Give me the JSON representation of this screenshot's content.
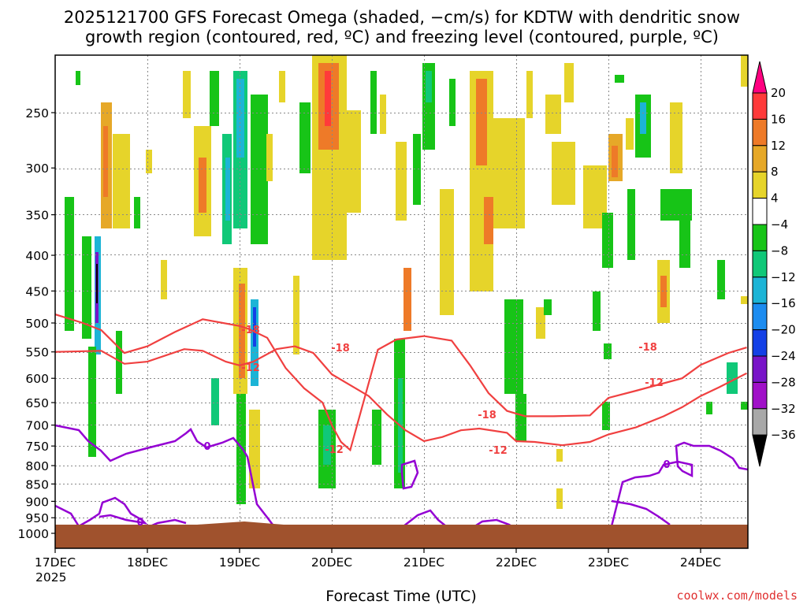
{
  "chart_data": {
    "type": "heatmap",
    "title_lines": [
      "2025121700 GFS Forecast Omega (shaded, −cm/s) for KDTW with dendritic snow",
      "growth region (contoured, red, ºC) and freezing level (contoured, purple, ºC)"
    ],
    "xlabel": "Forecast Time (UTC)",
    "ylabel": "",
    "credit": "coolwx.com/models",
    "x_ticks": [
      "17DEC",
      "18DEC",
      "19DEC",
      "20DEC",
      "21DEC",
      "22DEC",
      "23DEC",
      "24DEC"
    ],
    "x_tick_sub": "2025",
    "xlim_days": [
      0,
      7.5
    ],
    "y_ticks": [
      250,
      300,
      350,
      400,
      450,
      500,
      550,
      600,
      650,
      700,
      750,
      800,
      850,
      900,
      950,
      1000
    ],
    "ylim_hpa": [
      200,
      1025
    ],
    "colorbar": {
      "labels": [
        "20",
        "16",
        "12",
        "8",
        "4",
        "−4",
        "−8",
        "−12",
        "−16",
        "−20",
        "−24",
        "−28",
        "−32",
        "−36"
      ],
      "colors": [
        "#ff0080",
        "#ff3a3a",
        "#ee7a28",
        "#e6a828",
        "#e6d42a",
        "#ffffff",
        "#17c417",
        "#10c878",
        "#1cb4d6",
        "#1c8cf0",
        "#1440e6",
        "#7814c8",
        "#a010c8",
        "#a8a8a8",
        "#000000"
      ]
    },
    "contours": {
      "dgz_levels": [
        {
          "label": "-12",
          "color": "#f04040",
          "pressure_by_day": [
            [
              0.0,
              550
            ],
            [
              0.5,
              548
            ],
            [
              0.75,
              572
            ],
            [
              1.0,
              568
            ],
            [
              1.4,
              545
            ],
            [
              1.6,
              548
            ],
            [
              1.85,
              568
            ],
            [
              2.0,
              575
            ],
            [
              2.15,
              568
            ],
            [
              2.4,
              545
            ],
            [
              2.6,
              540
            ],
            [
              2.8,
              552
            ],
            [
              3.0,
              592
            ],
            [
              3.4,
              636
            ],
            [
              3.6,
              676
            ],
            [
              3.8,
              712
            ],
            [
              4.0,
              738
            ],
            [
              4.2,
              728
            ],
            [
              4.4,
              712
            ],
            [
              4.6,
              708
            ],
            [
              4.9,
              718
            ],
            [
              5.0,
              738
            ],
            [
              5.2,
              740
            ],
            [
              5.5,
              748
            ],
            [
              5.8,
              740
            ],
            [
              6.0,
              722
            ],
            [
              6.3,
              705
            ],
            [
              6.6,
              680
            ],
            [
              6.8,
              660
            ],
            [
              7.0,
              636
            ],
            [
              7.2,
              618
            ],
            [
              7.5,
              590
            ]
          ],
          "label_at_day": [
            1.1,
            5.0
          ]
        },
        {
          "label": "-18",
          "color": "#f04040",
          "pressure_by_day": [
            [
              0.0,
              486
            ],
            [
              0.3,
              500
            ],
            [
              0.5,
              512
            ],
            [
              0.75,
              552
            ],
            [
              1.0,
              540
            ],
            [
              1.3,
              515
            ],
            [
              1.6,
              494
            ],
            [
              2.0,
              505
            ],
            [
              2.1,
              510
            ],
            [
              2.3,
              525
            ],
            [
              2.5,
              580
            ],
            [
              2.7,
              620
            ],
            [
              2.9,
              650
            ],
            [
              3.0,
              700
            ],
            [
              3.1,
              740
            ],
            [
              3.2,
              760
            ],
            [
              3.5,
              546
            ],
            [
              3.7,
              528
            ],
            [
              4.0,
              522
            ],
            [
              4.3,
              530
            ],
            [
              4.5,
              575
            ],
            [
              4.7,
              630
            ],
            [
              4.9,
              668
            ],
            [
              5.1,
              680
            ],
            [
              5.4,
              680
            ],
            [
              5.8,
              678
            ],
            [
              6.0,
              640
            ],
            [
              6.3,
              625
            ],
            [
              6.8,
              600
            ],
            [
              7.0,
              574
            ],
            [
              7.3,
              552
            ],
            [
              7.5,
              542
            ]
          ],
          "label_at_day": [
            2.2,
            3.15
          ]
        }
      ],
      "freezing_level": {
        "label": "0",
        "color": "#9400d3"
      }
    }
  }
}
